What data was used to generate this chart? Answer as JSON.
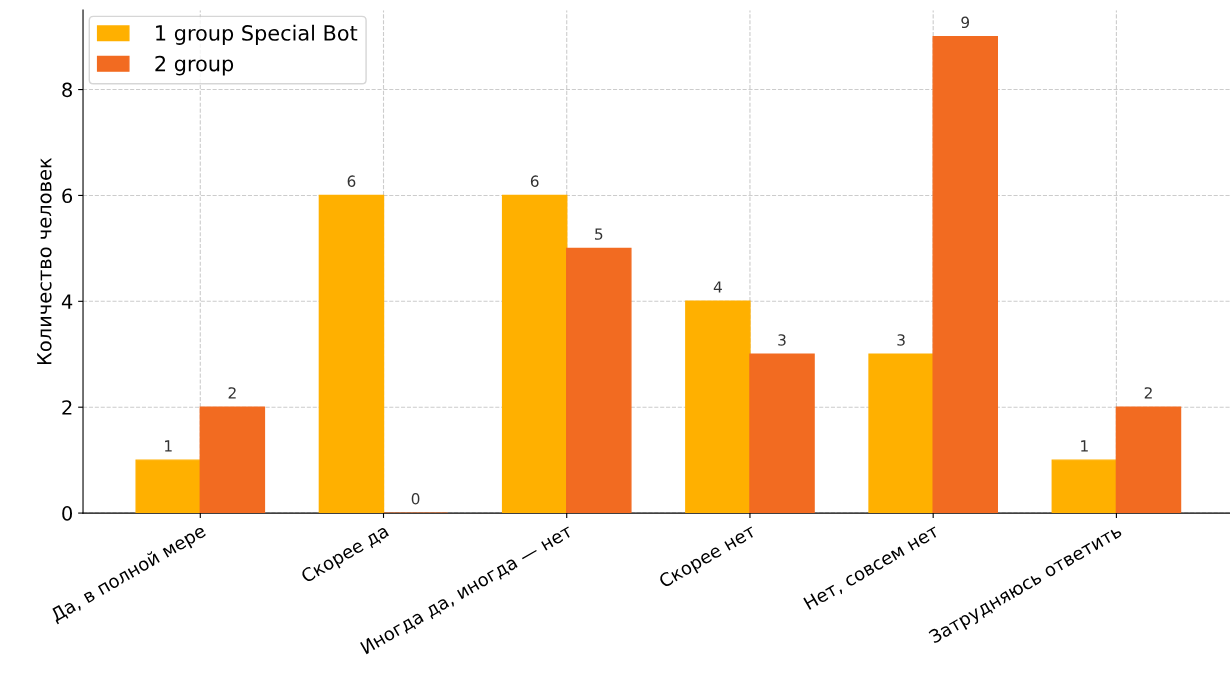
{
  "chart_data": {
    "type": "bar",
    "ylabel": "Количество человек",
    "categories": [
      "Да, в полной мере",
      "Скорее да",
      "Иногда да, иногда — нет",
      "Скорее нет",
      "Нет, совсем нет",
      "Затрудняюсь ответить"
    ],
    "series": [
      {
        "name": "1 group Special Bot",
        "color": "#ffb000",
        "values": [
          1,
          6,
          6,
          4,
          3,
          1
        ]
      },
      {
        "name": "2 group",
        "color": "#f26b21",
        "values": [
          2,
          0,
          5,
          3,
          9,
          2
        ]
      }
    ],
    "ylim": [
      0,
      9.5
    ],
    "yticks": [
      0,
      2,
      4,
      6,
      8
    ],
    "grid": true,
    "legend": "top left",
    "data_labels": true
  }
}
